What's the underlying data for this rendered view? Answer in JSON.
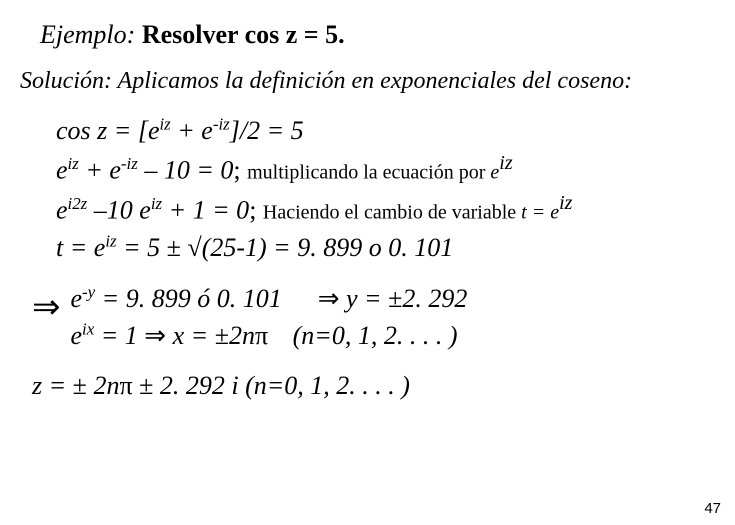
{
  "title": {
    "prefix": "Ejemplo:",
    "bold": "Resolver  cos z = 5."
  },
  "solucion": "Solución: Aplicamos la definición en exponenciales del coseno:",
  "eq1": {
    "pre": "cos z = [e",
    "exp1": "iz",
    "mid1": " + e",
    "exp2": "-iz",
    "post": "]/2 = 5"
  },
  "eq2": {
    "a0": "e",
    "e1": "iz",
    "a1": " + e",
    "e2": "-iz",
    "a2": " – 10 = 0",
    "note_pre": "; ",
    "note": "multiplicando la ecuación por ",
    "tail_e": "e",
    "tail_exp": "iz"
  },
  "eq3": {
    "a0": "e",
    "e1": "i2z",
    "a1": " –10 e",
    "e2": "iz",
    "a2": " + 1 = 0",
    "note_pre": "; ",
    "note": "Haciendo el cambio de variable ",
    "tail": "t = e",
    "tail_exp": "iz"
  },
  "eq4": {
    "pre": "t = e",
    "exp": "iz",
    "mid": " = 5 ",
    "pm": "±",
    "sqrt": " √(25-1) = 9. 899  o  0. 101"
  },
  "imply": {
    "line1a": "e",
    "line1exp": "-y",
    "line1b": " = 9. 899 ó 0. 101",
    "line1arrow": "⇒",
    "line1c": " y = ",
    "line1pm": "±",
    "line1d": "2. 292",
    "line2a": "e",
    "line2exp": "ix",
    "line2b": " = 1  ",
    "line2arrow": "⇒",
    "line2c": "  x = ",
    "line2pm": "±",
    "line2d": "2n",
    "line2pi": "π",
    "line2n": "    (n=0, 1, 2. . . . )"
  },
  "final": {
    "pre": "z = ",
    "pm1": "±",
    "mid1": " 2n",
    "pi": "π",
    "sp": " ",
    "pm2": "±",
    "mid2": " 2. 292 i    (n=0, 1, 2. . . . )"
  },
  "pagenum": "47"
}
